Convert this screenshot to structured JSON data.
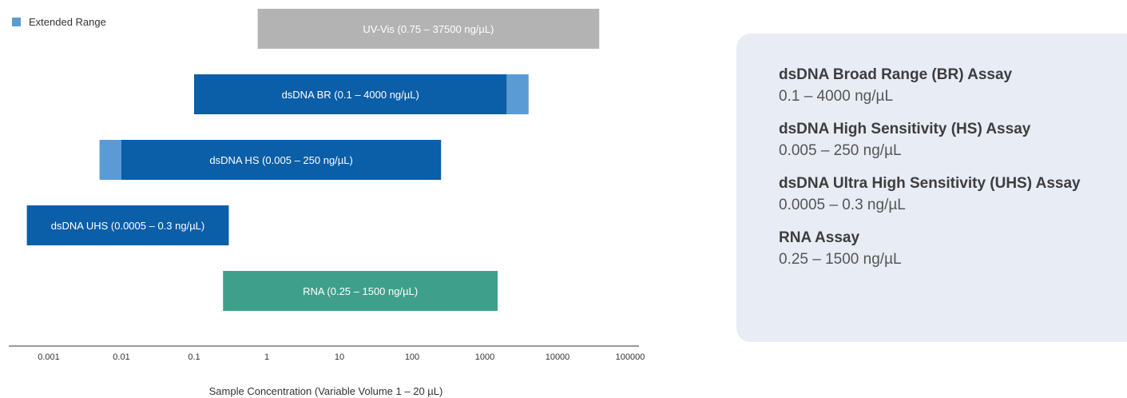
{
  "legend": {
    "label": "Extended Range",
    "color": "#5b9bd5"
  },
  "chart_data": {
    "type": "bar",
    "orientation": "horizontal-range",
    "x_scale": "log",
    "xlim": [
      0.0005,
      100000
    ],
    "xlabel": "Sample Concentration (Variable Volume 1 – 20 µL)",
    "x_ticks": [
      {
        "value": 0.001,
        "label": "0.001"
      },
      {
        "value": 0.01,
        "label": "0.01"
      },
      {
        "value": 0.1,
        "label": "0.1"
      },
      {
        "value": 1,
        "label": "1"
      },
      {
        "value": 10,
        "label": "10"
      },
      {
        "value": 100,
        "label": "100"
      },
      {
        "value": 1000,
        "label": "1000"
      },
      {
        "value": 10000,
        "label": "10000"
      },
      {
        "value": 100000,
        "label": "100000"
      }
    ],
    "legend_position": "top-left",
    "series": [
      {
        "label": "UV-Vis (0.75 – 37500 ng/µL)",
        "start": 0.75,
        "end": 37500,
        "color": "#b3b3b3",
        "extended": []
      },
      {
        "label": "dsDNA BR (0.1 – 4000 ng/µL)",
        "start": 0.1,
        "end": 2000,
        "color": "#0b5ea8",
        "extended": [
          [
            2000,
            4000
          ]
        ]
      },
      {
        "label": "dsDNA HS (0.005 – 250 ng/µL)",
        "start": 0.01,
        "end": 250,
        "color": "#0b5ea8",
        "extended": [
          [
            0.005,
            0.01
          ]
        ]
      },
      {
        "label": "dsDNA UHS (0.0005 – 0.3 ng/µL)",
        "start": 0.0005,
        "end": 0.3,
        "color": "#0b5ea8",
        "extended": []
      },
      {
        "label": "RNA (0.25 – 1500 ng/µL)",
        "start": 0.25,
        "end": 1500,
        "color": "#3ea08b",
        "extended": []
      }
    ],
    "extended_color": "#5b9bd5"
  },
  "assays": [
    {
      "name": "dsDNA Broad Range (BR) Assay",
      "range": "0.1 – 4000 ng/µL"
    },
    {
      "name": "dsDNA High Sensitivity (HS) Assay",
      "range": "0.005 – 250 ng/µL"
    },
    {
      "name": "dsDNA Ultra High Sensitivity (UHS) Assay",
      "range": "0.0005 – 0.3 ng/µL"
    },
    {
      "name": "RNA Assay",
      "range": "0.25 – 1500 ng/µL"
    }
  ]
}
